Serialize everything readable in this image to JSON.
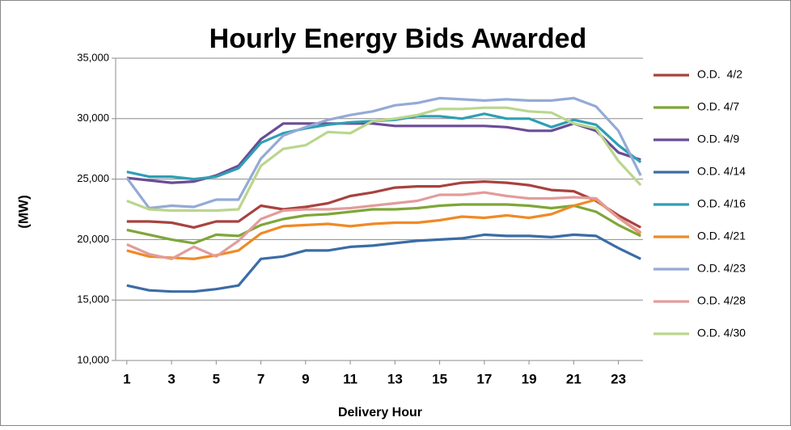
{
  "chart_data": {
    "type": "line",
    "title": "Hourly Energy Bids Awarded",
    "x_label": "Delivery Hour",
    "y_label": "(MW)",
    "x": [
      1,
      2,
      3,
      4,
      5,
      6,
      7,
      8,
      9,
      10,
      11,
      12,
      13,
      14,
      15,
      16,
      17,
      18,
      19,
      20,
      21,
      22,
      23,
      24
    ],
    "xlim": [
      0.5,
      24.1
    ],
    "xticks": [
      1,
      3,
      5,
      7,
      9,
      11,
      13,
      15,
      17,
      19,
      21,
      23
    ],
    "ylim": [
      10000,
      35000
    ],
    "yticks": [
      {
        "value": 10000,
        "label": "10,000"
      },
      {
        "value": 15000,
        "label": "15,000"
      },
      {
        "value": 20000,
        "label": "20,000"
      },
      {
        "value": 25000,
        "label": "25,000"
      },
      {
        "value": 30000,
        "label": "30,000"
      },
      {
        "value": 35000,
        "label": "35,000"
      }
    ],
    "grid": true,
    "legend": "right",
    "series": [
      {
        "name": "O.D.  4/2",
        "color": "#a8423f",
        "values": [
          21500,
          21500,
          21400,
          21000,
          21500,
          21500,
          22800,
          22500,
          22700,
          23000,
          23600,
          23900,
          24300,
          24400,
          24400,
          24700,
          24800,
          24700,
          24500,
          24100,
          24000,
          23200,
          22000,
          21000
        ]
      },
      {
        "name": "O.D. 4/7",
        "color": "#7ea639",
        "values": [
          20800,
          20400,
          20000,
          19700,
          20400,
          20300,
          21200,
          21700,
          22000,
          22100,
          22300,
          22500,
          22500,
          22600,
          22800,
          22900,
          22900,
          22900,
          22800,
          22600,
          22800,
          22300,
          21200,
          20300
        ]
      },
      {
        "name": "O.D. 4/9",
        "color": "#6b4c95",
        "values": [
          25100,
          24900,
          24700,
          24800,
          25300,
          26100,
          28300,
          29600,
          29600,
          29600,
          29600,
          29600,
          29400,
          29400,
          29400,
          29400,
          29400,
          29300,
          29000,
          29000,
          29600,
          29000,
          27200,
          26600
        ]
      },
      {
        "name": "O.D. 4/14",
        "color": "#3b6ca6",
        "values": [
          16200,
          15800,
          15700,
          15700,
          15900,
          16200,
          18400,
          18600,
          19100,
          19100,
          19400,
          19500,
          19700,
          19900,
          20000,
          20100,
          20400,
          20300,
          20300,
          20200,
          20400,
          20300,
          19300,
          18400
        ]
      },
      {
        "name": "O.D. 4/16",
        "color": "#2f9fb4",
        "values": [
          25600,
          25200,
          25200,
          25000,
          25200,
          25900,
          28000,
          28800,
          29200,
          29500,
          29700,
          29800,
          29900,
          30200,
          30200,
          30000,
          30400,
          30000,
          30000,
          29300,
          29900,
          29500,
          27800,
          26400
        ]
      },
      {
        "name": "O.D. 4/21",
        "color": "#ef8a25",
        "values": [
          19100,
          18600,
          18500,
          18400,
          18700,
          19100,
          20500,
          21100,
          21200,
          21300,
          21100,
          21300,
          21400,
          21400,
          21600,
          21900,
          21800,
          22000,
          21800,
          22100,
          22800,
          23300,
          21800,
          20500
        ]
      },
      {
        "name": "O.D. 4/23",
        "color": "#94aad6",
        "values": [
          25100,
          22600,
          22800,
          22700,
          23300,
          23300,
          26700,
          28600,
          29300,
          29900,
          30300,
          30600,
          31100,
          31300,
          31700,
          31600,
          31500,
          31600,
          31500,
          31500,
          31700,
          31000,
          29000,
          25300
        ]
      },
      {
        "name": "O.D. 4/28",
        "color": "#e29c9a",
        "values": [
          19600,
          18800,
          18400,
          19400,
          18600,
          19900,
          21700,
          22400,
          22500,
          22500,
          22600,
          22800,
          23000,
          23200,
          23700,
          23700,
          23900,
          23600,
          23400,
          23400,
          23500,
          23400,
          21800,
          20600
        ]
      },
      {
        "name": "O.D. 4/30",
        "color": "#bad68e",
        "values": [
          23200,
          22500,
          22400,
          22400,
          22400,
          22500,
          26100,
          27500,
          27800,
          28900,
          28800,
          29800,
          30000,
          30300,
          30800,
          30800,
          30900,
          30900,
          30600,
          30500,
          29600,
          29200,
          26500,
          24500
        ]
      }
    ]
  }
}
